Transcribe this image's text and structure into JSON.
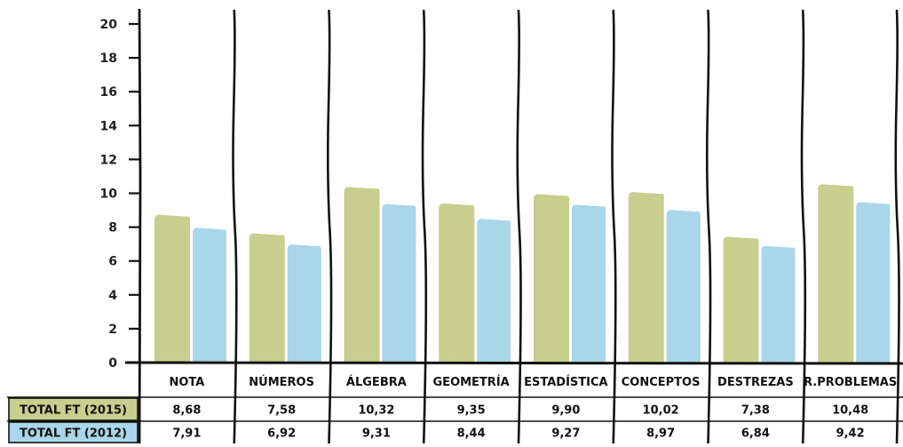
{
  "chart_data": {
    "type": "bar",
    "categories": [
      "NOTA",
      "NÚMEROS",
      "ÁLGEBRA",
      "GEOMETRÍA",
      "ESTADÍSTICA",
      "CONCEPTOS",
      "DESTREZAS",
      "R.PROBLEMAS"
    ],
    "series": [
      {
        "name": "TOTAL FT (2015)",
        "color": "#c8cf8e",
        "values": [
          8.68,
          7.58,
          10.32,
          9.35,
          9.9,
          10.02,
          7.38,
          10.48
        ],
        "value_labels": [
          "8,68",
          "7,58",
          "10,32",
          "9,35",
          "9,90",
          "10,02",
          "7,38",
          "10,48"
        ]
      },
      {
        "name": "TOTAL FT (2012)",
        "color": "#a9d6e9",
        "values": [
          7.91,
          6.92,
          9.31,
          8.44,
          9.27,
          8.97,
          6.84,
          9.42
        ],
        "value_labels": [
          "7,91",
          "6,92",
          "9,31",
          "8,44",
          "9,27",
          "8,97",
          "6,84",
          "9,42"
        ]
      }
    ],
    "ylim": [
      0,
      20
    ],
    "yticks": [
      "0",
      "2",
      "4",
      "6",
      "8",
      "10",
      "12",
      "14",
      "16",
      "18",
      "20"
    ],
    "grid": false,
    "data_table": true
  }
}
